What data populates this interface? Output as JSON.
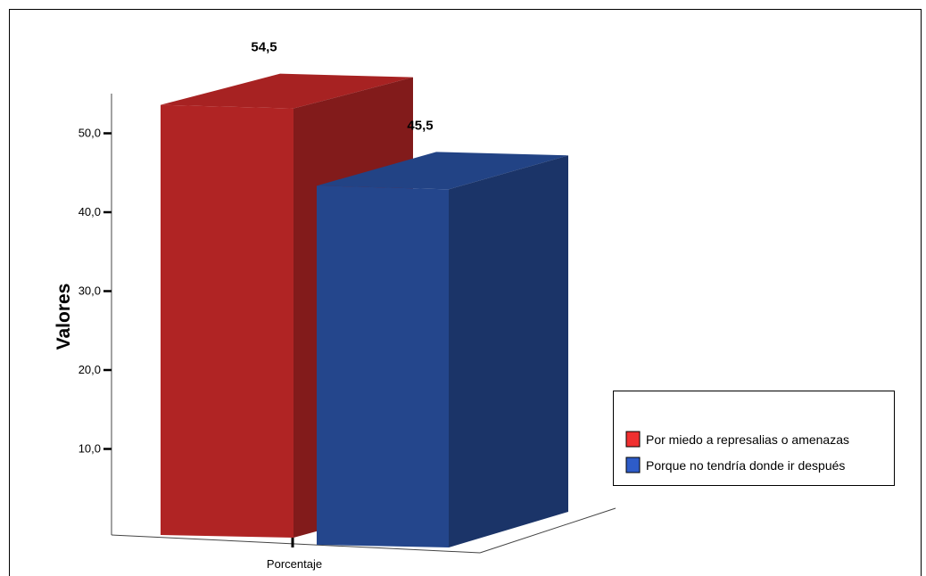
{
  "chart_data": {
    "type": "bar",
    "categories": [
      "Porcentaje"
    ],
    "series": [
      {
        "name": "Por miedo a represalias o amenazas",
        "values": [
          54.5
        ],
        "color": "#b02424"
      },
      {
        "name": "Porque no tendría donde ir después",
        "values": [
          45.5
        ],
        "color": "#24468c"
      }
    ],
    "data_labels": [
      "54,5",
      "45,5"
    ],
    "ylabel": "Valores",
    "yticks": [
      "10,0",
      "20,0",
      "30,0",
      "40,0",
      "50,0"
    ],
    "ytick_values": [
      10,
      20,
      30,
      40,
      50
    ],
    "ylim": [
      0,
      60
    ],
    "legend_position": "right",
    "grid": false,
    "style": "3d-bar"
  }
}
